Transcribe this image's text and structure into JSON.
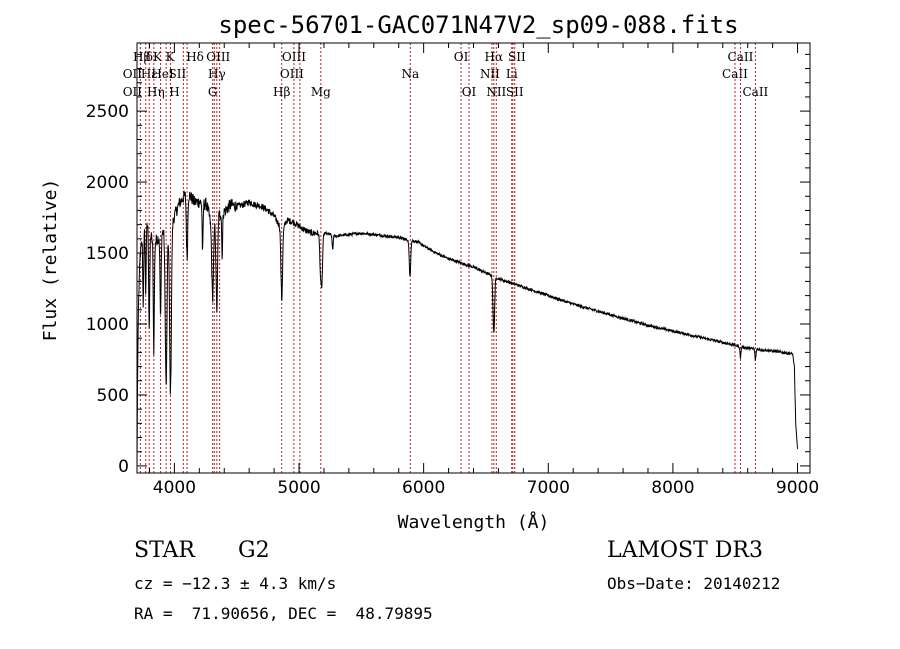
{
  "chart_data": {
    "type": "line",
    "title": "spec-56701-GAC071N47V2_sp09-088.fits",
    "xlabel": "Wavelength (Å)",
    "ylabel": "Flux (relative)",
    "xlim": [
      3700,
      9100
    ],
    "ylim": [
      -50,
      2980
    ],
    "x_ticks": [
      4000,
      5000,
      6000,
      7000,
      8000,
      9000
    ],
    "y_ticks": [
      0,
      500,
      1000,
      1500,
      2000,
      2500
    ],
    "x_tick_labels": [
      "4000",
      "5000",
      "6000",
      "7000",
      "8000",
      "9000"
    ],
    "y_tick_labels": [
      "0",
      "500",
      "1000",
      "1500",
      "2000",
      "2500"
    ],
    "grid": false,
    "continuum": [
      [
        3700,
        0
      ],
      [
        3705,
        620
      ],
      [
        3712,
        1150
      ],
      [
        3725,
        1480
      ],
      [
        3750,
        1640
      ],
      [
        3790,
        1700
      ],
      [
        3830,
        1560
      ],
      [
        3880,
        1620
      ],
      [
        3920,
        1660
      ],
      [
        3970,
        1680
      ],
      [
        4000,
        1760
      ],
      [
        4040,
        1850
      ],
      [
        4080,
        1900
      ],
      [
        4120,
        1910
      ],
      [
        4160,
        1860
      ],
      [
        4200,
        1860
      ],
      [
        4260,
        1840
      ],
      [
        4300,
        1680
      ],
      [
        4350,
        1770
      ],
      [
        4400,
        1790
      ],
      [
        4450,
        1840
      ],
      [
        4500,
        1830
      ],
      [
        4550,
        1840
      ],
      [
        4600,
        1860
      ],
      [
        4650,
        1840
      ],
      [
        4700,
        1830
      ],
      [
        4750,
        1800
      ],
      [
        4800,
        1760
      ],
      [
        4840,
        1700
      ],
      [
        4870,
        1660
      ],
      [
        4900,
        1730
      ],
      [
        4950,
        1720
      ],
      [
        5000,
        1690
      ],
      [
        5050,
        1660
      ],
      [
        5100,
        1640
      ],
      [
        5200,
        1640
      ],
      [
        5300,
        1620
      ],
      [
        5400,
        1630
      ],
      [
        5500,
        1640
      ],
      [
        5600,
        1630
      ],
      [
        5700,
        1620
      ],
      [
        5800,
        1610
      ],
      [
        5880,
        1590
      ],
      [
        5950,
        1580
      ],
      [
        6000,
        1550
      ],
      [
        6100,
        1500
      ],
      [
        6200,
        1460
      ],
      [
        6300,
        1430
      ],
      [
        6400,
        1400
      ],
      [
        6500,
        1360
      ],
      [
        6600,
        1320
      ],
      [
        6700,
        1290
      ],
      [
        6800,
        1260
      ],
      [
        7000,
        1200
      ],
      [
        7200,
        1140
      ],
      [
        7400,
        1090
      ],
      [
        7600,
        1040
      ],
      [
        7800,
        990
      ],
      [
        8000,
        950
      ],
      [
        8200,
        910
      ],
      [
        8400,
        870
      ],
      [
        8600,
        830
      ],
      [
        8800,
        810
      ],
      [
        8960,
        790
      ],
      [
        8975,
        700
      ],
      [
        8985,
        300
      ],
      [
        9000,
        120
      ]
    ],
    "absorptions": [
      {
        "x": 3750,
        "depth": 500,
        "width": 5
      },
      {
        "x": 3770,
        "depth": 450,
        "width": 5
      },
      {
        "x": 3798,
        "depth": 700,
        "width": 6
      },
      {
        "x": 3835,
        "depth": 750,
        "width": 6
      },
      {
        "x": 3889,
        "depth": 600,
        "width": 6
      },
      {
        "x": 3933.7,
        "depth": 1100,
        "width": 10
      },
      {
        "x": 3968.5,
        "depth": 1150,
        "width": 10
      },
      {
        "x": 4101.7,
        "depth": 450,
        "width": 7
      },
      {
        "x": 4226.7,
        "depth": 350,
        "width": 5
      },
      {
        "x": 4307,
        "depth": 500,
        "width": 10
      },
      {
        "x": 4340.5,
        "depth": 650,
        "width": 9
      },
      {
        "x": 4383.5,
        "depth": 300,
        "width": 5
      },
      {
        "x": 4861.3,
        "depth": 500,
        "width": 9
      },
      {
        "x": 5172.7,
        "depth": 250,
        "width": 9
      },
      {
        "x": 5183.6,
        "depth": 300,
        "width": 9
      },
      {
        "x": 5270,
        "depth": 100,
        "width": 6
      },
      {
        "x": 5890,
        "depth": 250,
        "width": 8
      },
      {
        "x": 6563,
        "depth": 400,
        "width": 9
      },
      {
        "x": 8542,
        "depth": 80,
        "width": 6
      },
      {
        "x": 8662,
        "depth": 80,
        "width": 6
      }
    ],
    "line_markers": [
      {
        "x": 3727,
        "labels": [
          {
            "row": 1,
            "text": "OII",
            "dx": -8
          },
          {
            "row": 2,
            "text": "OII",
            "dx": -8
          }
        ]
      },
      {
        "x": 3770,
        "labels": [
          {
            "row": 0,
            "text": "Hβ",
            "dx": -4
          }
        ]
      },
      {
        "x": 3798,
        "labels": [
          {
            "row": 1,
            "text": "Hε",
            "dx": 0
          }
        ]
      },
      {
        "x": 3835,
        "labels": [
          {
            "row": 0,
            "text": "δK",
            "dx": 0
          },
          {
            "row": 2,
            "text": "Hη",
            "dx": 2
          }
        ]
      },
      {
        "x": 3889,
        "labels": [
          {
            "row": 1,
            "text": "HeI",
            "dx": 2
          }
        ]
      },
      {
        "x": 3933.7,
        "labels": [
          {
            "row": 0,
            "text": "K",
            "dx": 4
          }
        ]
      },
      {
        "x": 3968.5,
        "labels": [
          {
            "row": 2,
            "text": "H",
            "dx": 4
          }
        ]
      },
      {
        "x": 4072,
        "labels": [
          {
            "row": 1,
            "text": "SII",
            "dx": -6
          }
        ]
      },
      {
        "x": 4101.7,
        "labels": [
          {
            "row": 0,
            "text": "Hδ",
            "dx": 8
          }
        ]
      },
      {
        "x": 4320,
        "labels": [
          {
            "row": 0,
            "text": "OIII",
            "dx": 4
          }
        ]
      },
      {
        "x": 4340.5,
        "labels": [
          {
            "row": 1,
            "text": "Hγ",
            "dx": 0
          }
        ]
      },
      {
        "x": 4307,
        "labels": [
          {
            "row": 2,
            "text": "G",
            "dx": 0
          }
        ]
      },
      {
        "x": 4363,
        "labels": []
      },
      {
        "x": 4861.3,
        "labels": [
          {
            "row": 2,
            "text": "Hβ",
            "dx": 0
          }
        ]
      },
      {
        "x": 4959,
        "labels": [
          {
            "row": 0,
            "text": "OIII",
            "dx": 0
          }
        ]
      },
      {
        "x": 5007,
        "labels": [
          {
            "row": 1,
            "text": "OIII",
            "dx": -8
          }
        ]
      },
      {
        "x": 5175,
        "labels": [
          {
            "row": 2,
            "text": "Mg",
            "dx": 0
          }
        ]
      },
      {
        "x": 5893,
        "labels": [
          {
            "row": 1,
            "text": "Na",
            "dx": 0
          }
        ]
      },
      {
        "x": 6300,
        "labels": [
          {
            "row": 0,
            "text": "OI",
            "dx": 0
          }
        ]
      },
      {
        "x": 6364,
        "labels": [
          {
            "row": 2,
            "text": "OI",
            "dx": 0
          }
        ]
      },
      {
        "x": 6548,
        "labels": [
          {
            "row": 1,
            "text": "NII",
            "dx": -2
          }
        ]
      },
      {
        "x": 6563,
        "labels": [
          {
            "row": 0,
            "text": "Hα",
            "dx": 0
          }
        ]
      },
      {
        "x": 6583,
        "labels": [
          {
            "row": 2,
            "text": "NII",
            "dx": 0
          }
        ]
      },
      {
        "x": 6707,
        "labels": [
          {
            "row": 1,
            "text": "Li",
            "dx": 0
          }
        ]
      },
      {
        "x": 6716,
        "labels": [
          {
            "row": 0,
            "text": "SII",
            "dx": 4
          }
        ]
      },
      {
        "x": 6731,
        "labels": [
          {
            "row": 2,
            "text": "SII",
            "dx": 0
          }
        ]
      },
      {
        "x": 8498,
        "labels": [
          {
            "row": 1,
            "text": "CaII",
            "dx": 0
          }
        ]
      },
      {
        "x": 8542,
        "labels": [
          {
            "row": 0,
            "text": "CaII",
            "dx": 0
          }
        ]
      },
      {
        "x": 8662,
        "labels": [
          {
            "row": 2,
            "text": "CaII",
            "dx": 0
          }
        ]
      }
    ]
  },
  "info": {
    "class": "STAR",
    "subclass": "G2",
    "survey": "LAMOST DR3",
    "cz": "cz = −12.3 ± 4.3 km/s",
    "obs_date": "Obs−Date: 20140212",
    "coords": "RA =  71.90656, DEC =  48.79895"
  },
  "colors": {
    "spectrum": "#000000",
    "marker": "#b22222",
    "axis": "#000000"
  }
}
